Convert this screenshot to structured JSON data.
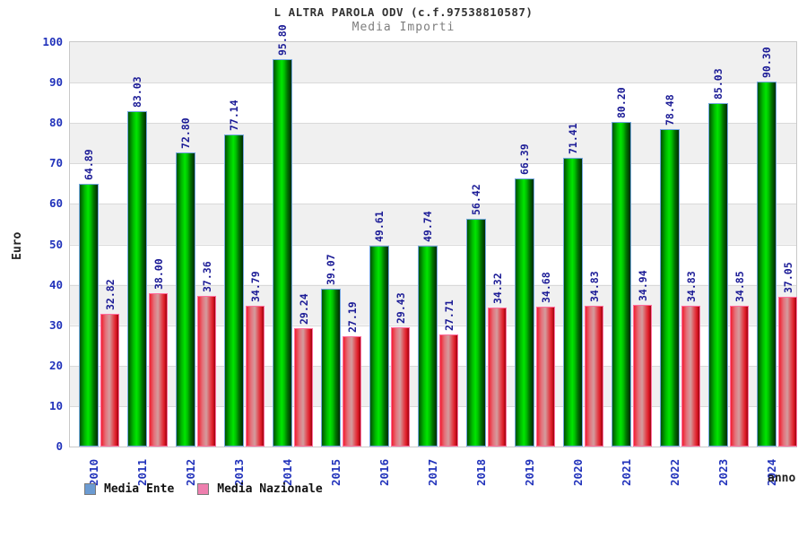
{
  "chart_data": {
    "type": "bar",
    "title": "L ALTRA PAROLA ODV (c.f.97538810587)",
    "subtitle": "Media Importi",
    "xlabel": "anno",
    "ylabel": "Euro",
    "ylim": [
      0,
      100
    ],
    "ytick_step": 10,
    "grid": true,
    "legend_position": "bottom-left",
    "value_label_format": "2-decimals",
    "categories": [
      "2010",
      "2011",
      "2012",
      "2013",
      "2014",
      "2015",
      "2016",
      "2017",
      "2018",
      "2019",
      "2020",
      "2021",
      "2022",
      "2023",
      "2024"
    ],
    "series": [
      {
        "name": "Media Ente",
        "bar_style": "green",
        "legend_color": "#6b9bd2",
        "values": [
          64.89,
          83.03,
          72.8,
          77.14,
          95.8,
          39.07,
          49.61,
          49.74,
          56.42,
          66.39,
          71.41,
          80.2,
          78.48,
          85.03,
          90.3
        ]
      },
      {
        "name": "Media Nazionale",
        "bar_style": "red",
        "legend_color": "#ee7fae",
        "values": [
          32.82,
          38.0,
          37.36,
          34.79,
          29.24,
          27.19,
          29.43,
          27.71,
          34.32,
          34.68,
          34.83,
          34.94,
          34.83,
          34.85,
          37.05
        ]
      }
    ],
    "colors": {
      "axis_tick_text": "#2233bb",
      "value_label_text": "#1b1b96",
      "title_text": "#333333",
      "subtitle_text": "#7e7e7e",
      "band_gray": "#f0f0f0",
      "band_white": "#ffffff",
      "gridline": "#d9d9d9",
      "green_bar_center": "#00e600",
      "green_bar_edge": "#005200",
      "green_bar_border": "#74a7e0",
      "red_bar_center": "#d49c9e",
      "red_bar_edge": "#ef2030",
      "red_bar_border": "#ff6e9e"
    }
  }
}
